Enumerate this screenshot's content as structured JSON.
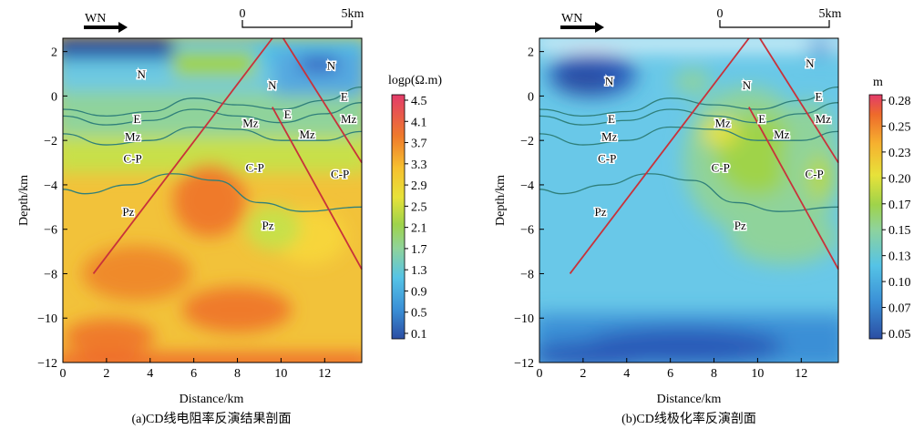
{
  "chart_data": [
    {
      "type": "heatmap",
      "title": "(a)CD线电阻率反演结果剖面",
      "xlabel": "Distance/km",
      "ylabel": "Depth/km",
      "xlim": [
        0,
        13.7
      ],
      "ylim": [
        -12,
        2.6
      ],
      "xticks": [
        "0",
        "2",
        "4",
        "6",
        "8",
        "10",
        "12"
      ],
      "yticks": [
        "2",
        "0",
        "−2",
        "−4",
        "−6",
        "−8",
        "−10",
        "−12"
      ],
      "direction_label": "WN",
      "scalebar": {
        "start_label": "0",
        "end_label": "5km",
        "length_km": 5
      },
      "colorbar": {
        "label": "logρ(Ω.m)",
        "ticks": [
          "4.5",
          "4.1",
          "3.7",
          "3.3",
          "2.9",
          "2.5",
          "2.1",
          "1.7",
          "1.3",
          "0.9",
          "0.5",
          "0.1"
        ],
        "min": 0.1,
        "max": 4.5
      },
      "stratum_labels": [
        {
          "text": "N",
          "x": 3.6,
          "y": 1.0
        },
        {
          "text": "N",
          "x": 9.6,
          "y": 0.5
        },
        {
          "text": "N",
          "x": 12.3,
          "y": 1.4
        },
        {
          "text": "E",
          "x": 12.9,
          "y": 0.0
        },
        {
          "text": "E",
          "x": 3.4,
          "y": -1.0
        },
        {
          "text": "E",
          "x": 10.3,
          "y": -0.8
        },
        {
          "text": "Mz",
          "x": 3.2,
          "y": -1.8
        },
        {
          "text": "Mz",
          "x": 8.6,
          "y": -1.2
        },
        {
          "text": "Mz",
          "x": 11.2,
          "y": -1.7
        },
        {
          "text": "Mz",
          "x": 13.1,
          "y": -1.0
        },
        {
          "text": "C-P",
          "x": 3.2,
          "y": -2.8
        },
        {
          "text": "C-P",
          "x": 8.8,
          "y": -3.2
        },
        {
          "text": "C-P",
          "x": 12.7,
          "y": -3.5
        },
        {
          "text": "Pz",
          "x": 3.0,
          "y": -5.2
        },
        {
          "text": "Pz",
          "x": 9.4,
          "y": -5.8
        }
      ],
      "faults": [
        {
          "from": [
            1.4,
            -8.0
          ],
          "to": [
            9.6,
            2.6
          ]
        },
        {
          "from": [
            10.1,
            2.6
          ],
          "to": [
            13.7,
            -3.0
          ]
        },
        {
          "from": [
            9.6,
            -0.5
          ],
          "to": [
            13.7,
            -7.8
          ]
        }
      ],
      "horizons": [
        {
          "x": [
            0,
            2,
            4,
            6,
            8,
            10,
            12,
            13.7
          ],
          "y": [
            -0.6,
            -0.9,
            -0.7,
            -0.1,
            -0.4,
            -0.6,
            -0.2,
            0.4
          ]
        },
        {
          "x": [
            0,
            2,
            4,
            6,
            8,
            10,
            12,
            13.7
          ],
          "y": [
            -0.9,
            -1.3,
            -1.1,
            -0.6,
            -0.9,
            -1.2,
            -0.8,
            -0.3
          ]
        },
        {
          "x": [
            0,
            2,
            4,
            6,
            8,
            10,
            12,
            13.7
          ],
          "y": [
            -1.7,
            -2.2,
            -2.0,
            -1.4,
            -1.5,
            -2.0,
            -2.0,
            -1.6
          ]
        },
        {
          "x": [
            0,
            1,
            3,
            5,
            7,
            9,
            11,
            13.7
          ],
          "y": [
            -4.2,
            -4.4,
            -4.0,
            -3.5,
            -3.8,
            -4.8,
            -5.2,
            -5.0
          ]
        }
      ],
      "caption": "(a)CD线电阻率反演结果剖面"
    },
    {
      "type": "heatmap",
      "title": "(b)CD线极化率反演剖面",
      "xlabel": "Distance/km",
      "ylabel": "Depth/km",
      "xlim": [
        0,
        13.7
      ],
      "ylim": [
        -12,
        2.6
      ],
      "xticks": [
        "0",
        "2",
        "4",
        "6",
        "8",
        "10",
        "12"
      ],
      "yticks": [
        "2",
        "0",
        "−2",
        "−4",
        "−6",
        "−8",
        "−10",
        "−12"
      ],
      "direction_label": "WN",
      "scalebar": {
        "start_label": "0",
        "end_label": "5km",
        "length_km": 5
      },
      "colorbar": {
        "label": "m",
        "ticks": [
          "0.28",
          "0.25",
          "0.23",
          "0.20",
          "0.17",
          "0.15",
          "0.13",
          "0.10",
          "0.07",
          "0.05"
        ],
        "min": 0.05,
        "max": 0.28
      },
      "stratum_labels": [
        {
          "text": "N",
          "x": 3.2,
          "y": 0.7
        },
        {
          "text": "N",
          "x": 9.5,
          "y": 0.5
        },
        {
          "text": "N",
          "x": 12.4,
          "y": 1.5
        },
        {
          "text": "E",
          "x": 12.8,
          "y": 0.0
        },
        {
          "text": "E",
          "x": 3.3,
          "y": -1.0
        },
        {
          "text": "E",
          "x": 10.2,
          "y": -1.0
        },
        {
          "text": "Mz",
          "x": 3.2,
          "y": -1.8
        },
        {
          "text": "Mz",
          "x": 8.4,
          "y": -1.2
        },
        {
          "text": "Mz",
          "x": 11.1,
          "y": -1.7
        },
        {
          "text": "Mz",
          "x": 13.0,
          "y": -1.0
        },
        {
          "text": "C-P",
          "x": 3.1,
          "y": -2.8
        },
        {
          "text": "C-P",
          "x": 8.3,
          "y": -3.2
        },
        {
          "text": "C-P",
          "x": 12.6,
          "y": -3.5
        },
        {
          "text": "Pz",
          "x": 2.8,
          "y": -5.2
        },
        {
          "text": "Pz",
          "x": 9.2,
          "y": -5.8
        }
      ],
      "faults": [
        {
          "from": [
            1.4,
            -8.0
          ],
          "to": [
            9.6,
            2.6
          ]
        },
        {
          "from": [
            10.1,
            2.6
          ],
          "to": [
            13.7,
            -3.0
          ]
        },
        {
          "from": [
            9.6,
            -0.5
          ],
          "to": [
            13.7,
            -7.8
          ]
        }
      ],
      "horizons": [
        {
          "x": [
            0,
            2,
            4,
            6,
            8,
            10,
            12,
            13.7
          ],
          "y": [
            -0.6,
            -0.9,
            -0.7,
            -0.1,
            -0.4,
            -0.6,
            -0.2,
            0.4
          ]
        },
        {
          "x": [
            0,
            2,
            4,
            6,
            8,
            10,
            12,
            13.7
          ],
          "y": [
            -0.9,
            -1.3,
            -1.1,
            -0.6,
            -0.9,
            -1.2,
            -0.8,
            -0.3
          ]
        },
        {
          "x": [
            0,
            2,
            4,
            6,
            8,
            10,
            12,
            13.7
          ],
          "y": [
            -1.7,
            -2.2,
            -2.0,
            -1.4,
            -1.5,
            -2.0,
            -2.0,
            -1.6
          ]
        },
        {
          "x": [
            0,
            1,
            3,
            5,
            7,
            9,
            11,
            13.7
          ],
          "y": [
            -4.2,
            -4.4,
            -4.0,
            -3.5,
            -3.8,
            -4.8,
            -5.2,
            -5.0
          ]
        }
      ],
      "caption": "(b)CD线极化率反演剖面"
    }
  ],
  "colors": {
    "fault": "#c8323a",
    "horizon": "#2f7f7a",
    "colormap": [
      "#2b4ea3",
      "#3a8fd6",
      "#55c3e6",
      "#8fd39b",
      "#c8e04a",
      "#f3e23a",
      "#f6b12f",
      "#ee6a2b",
      "#e23b5a"
    ]
  }
}
